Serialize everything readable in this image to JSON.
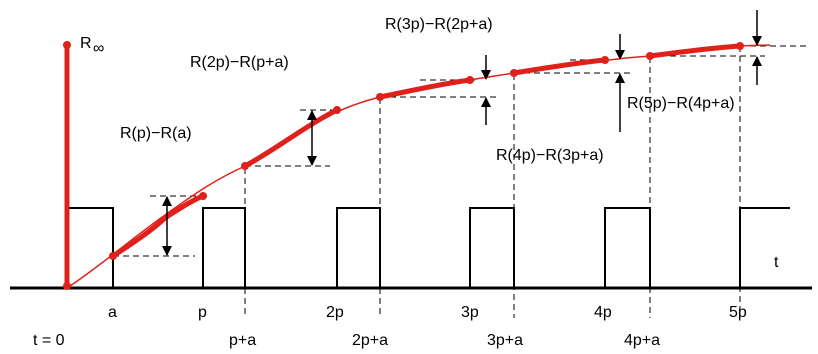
{
  "colors": {
    "curve": "#e0201a",
    "ink": "#000000",
    "background": "#ffffff"
  },
  "labels": {
    "r_infinity": "R",
    "r_infinity_sub": "∞",
    "t_axis": "t",
    "t_zero": "t = 0",
    "tick_a": "a",
    "tick_p": "p",
    "tick_p_a": "p+a",
    "tick_2p": "2p",
    "tick_2p_a": "2p+a",
    "tick_3p": "3p",
    "tick_3p_a": "3p+a",
    "tick_4p": "4p",
    "tick_4p_a": "4p+a",
    "tick_5p": "5p",
    "diff_1": "R(p)−R(a)",
    "diff_2": "R(2p)−R(p+a)",
    "diff_3": "R(3p)−R(2p+a)",
    "diff_4": "R(4p)−R(3p+a)",
    "diff_5": "R(5p)−R(4p+a)"
  }
}
